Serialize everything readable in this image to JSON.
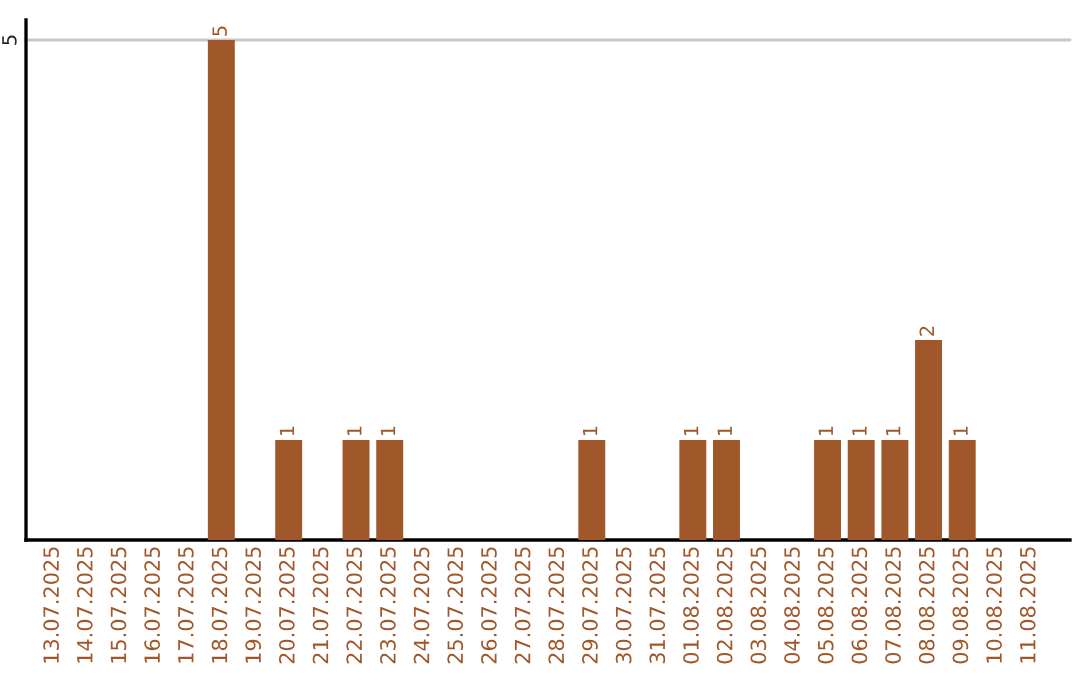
{
  "chart_data": {
    "type": "bar",
    "categories": [
      "13.07.2025",
      "14.07.2025",
      "15.07.2025",
      "16.07.2025",
      "17.07.2025",
      "18.07.2025",
      "19.07.2025",
      "20.07.2025",
      "21.07.2025",
      "22.07.2025",
      "23.07.2025",
      "24.07.2025",
      "25.07.2025",
      "26.07.2025",
      "27.07.2025",
      "28.07.2025",
      "29.07.2025",
      "30.07.2025",
      "31.07.2025",
      "01.08.2025",
      "02.08.2025",
      "03.08.2025",
      "04.08.2025",
      "05.08.2025",
      "06.08.2025",
      "07.08.2025",
      "08.08.2025",
      "09.08.2025",
      "10.08.2025",
      "11.08.2025"
    ],
    "values": [
      0,
      0,
      0,
      0,
      0,
      5,
      0,
      1,
      0,
      1,
      1,
      0,
      0,
      0,
      0,
      0,
      1,
      0,
      0,
      1,
      1,
      0,
      0,
      1,
      1,
      1,
      2,
      1,
      0,
      0
    ],
    "value_labels": [
      null,
      null,
      null,
      null,
      null,
      "5",
      null,
      "1",
      null,
      "1",
      "1",
      null,
      null,
      null,
      null,
      null,
      "1",
      null,
      null,
      "1",
      "1",
      null,
      null,
      "1",
      "1",
      "1",
      "2",
      "1",
      null,
      null
    ],
    "color": "#a0572a",
    "ylim": [
      0,
      5.2
    ],
    "yticks": [
      5
    ],
    "grid": "y"
  }
}
